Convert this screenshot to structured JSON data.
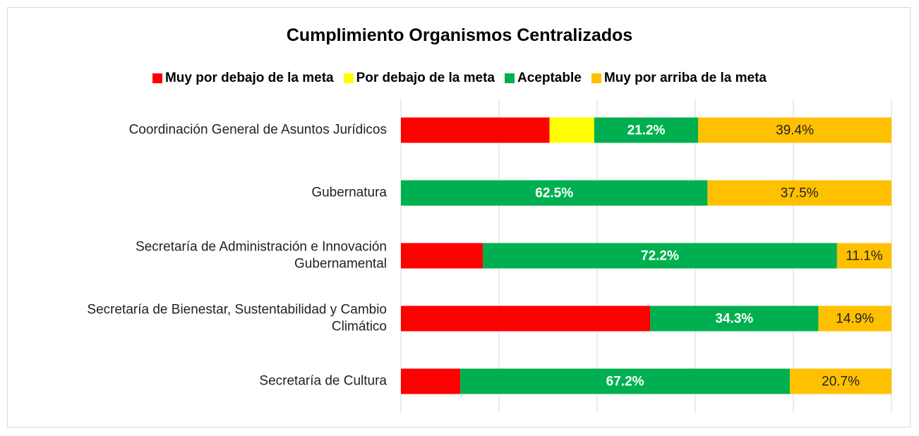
{
  "chart_data": {
    "type": "stacked_bar_horizontal",
    "title": "Cumplimiento Organismos Centralizados",
    "categories": [
      "Coordinación General de Asuntos Jurídicos",
      "Gubernatura",
      "Secretaría de Administración e Innovación Gubernamental",
      "Secretaría de Bienestar, Sustentabilidad y Cambio Climático",
      "Secretaría de Cultura"
    ],
    "series": [
      {
        "name": "Muy por debajo de la meta",
        "color": "#ff0000",
        "values": [
          30.3,
          0,
          16.7,
          50.8,
          12.1
        ]
      },
      {
        "name": "Por debajo de la meta",
        "color": "#ffff00",
        "values": [
          9.1,
          0,
          0,
          0,
          0
        ]
      },
      {
        "name": "Aceptable",
        "color": "#00b050",
        "values": [
          21.2,
          62.5,
          72.2,
          34.3,
          67.2
        ],
        "value_labels": [
          "21.2%",
          "62.5%",
          "72.2%",
          "34.3%",
          "67.2%"
        ]
      },
      {
        "name": "Muy por arriba de la meta",
        "color": "#ffc000",
        "values": [
          39.4,
          37.5,
          11.1,
          14.9,
          20.7
        ],
        "value_labels": [
          "39.4%",
          "37.5%",
          "11.1%",
          "14.9%",
          "20.7%"
        ]
      }
    ],
    "xlim": [
      0,
      100
    ],
    "xticks": [
      0,
      20,
      40,
      60,
      80,
      100
    ],
    "grid": true,
    "legend": "top"
  }
}
